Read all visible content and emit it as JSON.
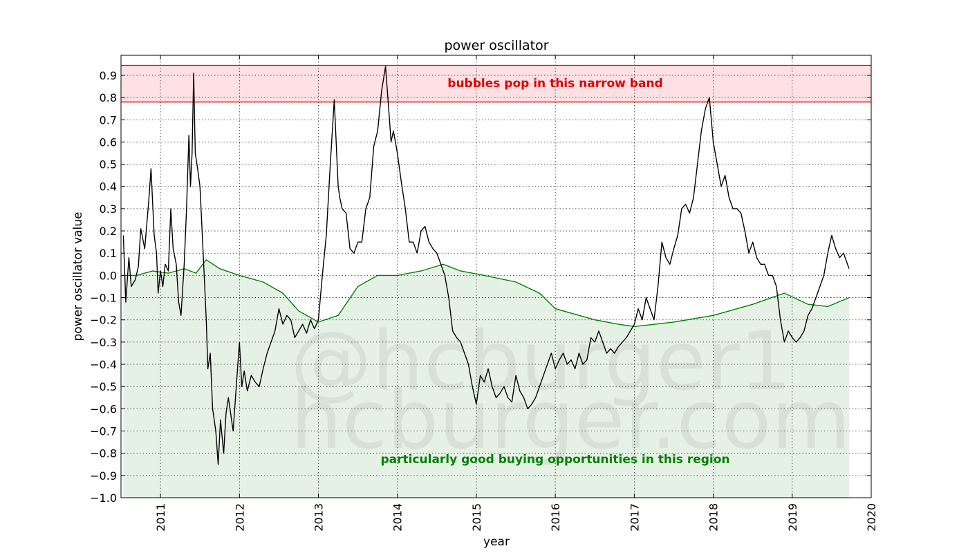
{
  "chart_data": {
    "type": "line",
    "title": "power oscillator",
    "xlabel": "year",
    "ylabel": "power oscillator value",
    "xlim": [
      2010.5,
      2020
    ],
    "ylim": [
      -1.0,
      0.99
    ],
    "x_ticks": [
      2011,
      2012,
      2013,
      2014,
      2015,
      2016,
      2017,
      2018,
      2019,
      2020
    ],
    "x_tick_labels": [
      "2011",
      "2012",
      "2013",
      "2014",
      "2015",
      "2016",
      "2017",
      "2018",
      "2019",
      "2020"
    ],
    "y_ticks": [
      -1.0,
      -0.9,
      -0.8,
      -0.7,
      -0.6,
      -0.5,
      -0.4,
      -0.3,
      -0.2,
      -0.1,
      0.0,
      0.1,
      0.2,
      0.3,
      0.4,
      0.5,
      0.6,
      0.7,
      0.8,
      0.9
    ],
    "y_tick_labels": [
      "−1.0",
      "−0.9",
      "−0.8",
      "−0.7",
      "−0.6",
      "−0.5",
      "−0.4",
      "−0.3",
      "−0.2",
      "−0.1",
      "0.0",
      "0.1",
      "0.2",
      "0.3",
      "0.4",
      "0.5",
      "0.6",
      "0.7",
      "0.8",
      "0.9"
    ],
    "grid": true,
    "colors": {
      "oscillator": "#000000",
      "lower_bound": "#008000",
      "buy_fill": "#e3f0e3",
      "bubble_band_fill": "#ffe0e3",
      "bubble_band_line": "#e00000"
    },
    "bubble_band": {
      "y_low": 0.78,
      "y_high": 0.945
    },
    "annotations": {
      "bubble": "bubbles pop in this narrow band",
      "buy": "particularly good buying opportunities in this region"
    },
    "watermark": [
      "@hcburger1",
      "hcburger.com"
    ],
    "series": [
      {
        "role": "oscillator",
        "x": [
          2010.53,
          2010.56,
          2010.6,
          2010.63,
          2010.68,
          2010.72,
          2010.75,
          2010.8,
          2010.85,
          2010.88,
          2010.92,
          2010.95,
          2010.97,
          2011.0,
          2011.03,
          2011.06,
          2011.1,
          2011.13,
          2011.16,
          2011.2,
          2011.23,
          2011.26,
          2011.3,
          2011.33,
          2011.36,
          2011.38,
          2011.4,
          2011.42,
          2011.44,
          2011.47,
          2011.5,
          2011.53,
          2011.56,
          2011.58,
          2011.6,
          2011.63,
          2011.66,
          2011.7,
          2011.73,
          2011.76,
          2011.8,
          2011.83,
          2011.86,
          2011.88,
          2011.92,
          2011.96,
          2012.0,
          2012.03,
          2012.06,
          2012.1,
          2012.15,
          2012.2,
          2012.25,
          2012.3,
          2012.35,
          2012.4,
          2012.45,
          2012.5,
          2012.55,
          2012.6,
          2012.65,
          2012.7,
          2012.75,
          2012.8,
          2012.85,
          2012.9,
          2012.95,
          2013.0,
          2013.05,
          2013.1,
          2013.15,
          2013.2,
          2013.25,
          2013.27,
          2013.3,
          2013.35,
          2013.4,
          2013.45,
          2013.5,
          2013.55,
          2013.6,
          2013.65,
          2013.7,
          2013.75,
          2013.8,
          2013.85,
          2013.9,
          2013.92,
          2013.95,
          2014.0,
          2014.05,
          2014.1,
          2014.15,
          2014.2,
          2014.25,
          2014.3,
          2014.35,
          2014.4,
          2014.45,
          2014.5,
          2014.55,
          2014.6,
          2014.65,
          2014.7,
          2014.75,
          2014.8,
          2014.85,
          2014.9,
          2014.95,
          2015.0,
          2015.05,
          2015.1,
          2015.15,
          2015.2,
          2015.25,
          2015.3,
          2015.35,
          2015.4,
          2015.45,
          2015.5,
          2015.55,
          2015.6,
          2015.65,
          2015.7,
          2015.75,
          2015.8,
          2015.85,
          2015.9,
          2015.95,
          2016.0,
          2016.05,
          2016.1,
          2016.15,
          2016.2,
          2016.25,
          2016.3,
          2016.35,
          2016.4,
          2016.45,
          2016.5,
          2016.55,
          2016.6,
          2016.65,
          2016.7,
          2016.75,
          2016.8,
          2016.85,
          2016.9,
          2016.95,
          2017.0,
          2017.05,
          2017.1,
          2017.15,
          2017.2,
          2017.25,
          2017.3,
          2017.35,
          2017.4,
          2017.45,
          2017.5,
          2017.55,
          2017.6,
          2017.65,
          2017.7,
          2017.75,
          2017.8,
          2017.85,
          2017.9,
          2017.95,
          2017.97,
          2018.0,
          2018.05,
          2018.1,
          2018.15,
          2018.2,
          2018.25,
          2018.3,
          2018.35,
          2018.4,
          2018.45,
          2018.5,
          2018.55,
          2018.6,
          2018.65,
          2018.7,
          2018.75,
          2018.8,
          2018.85,
          2018.9,
          2018.95,
          2019.0,
          2019.05,
          2019.1,
          2019.15,
          2019.2,
          2019.25,
          2019.3,
          2019.35,
          2019.4,
          2019.45,
          2019.5,
          2019.55,
          2019.6,
          2019.65,
          2019.7,
          2019.72
        ],
        "y": [
          0.18,
          -0.12,
          0.08,
          -0.05,
          -0.02,
          0.04,
          0.21,
          0.12,
          0.33,
          0.48,
          0.18,
          0.1,
          -0.08,
          0.02,
          -0.05,
          0.05,
          0.02,
          0.3,
          0.12,
          0.05,
          -0.12,
          -0.18,
          0.05,
          0.3,
          0.63,
          0.4,
          0.55,
          0.91,
          0.55,
          0.48,
          0.4,
          0.18,
          -0.05,
          -0.2,
          -0.42,
          -0.35,
          -0.6,
          -0.7,
          -0.85,
          -0.65,
          -0.8,
          -0.62,
          -0.55,
          -0.6,
          -0.7,
          -0.5,
          -0.3,
          -0.5,
          -0.43,
          -0.52,
          -0.45,
          -0.48,
          -0.5,
          -0.42,
          -0.35,
          -0.3,
          -0.25,
          -0.15,
          -0.22,
          -0.18,
          -0.2,
          -0.28,
          -0.25,
          -0.22,
          -0.26,
          -0.2,
          -0.24,
          -0.2,
          0.0,
          0.18,
          0.5,
          0.79,
          0.4,
          0.35,
          0.3,
          0.28,
          0.12,
          0.1,
          0.15,
          0.15,
          0.3,
          0.35,
          0.58,
          0.65,
          0.83,
          0.94,
          0.7,
          0.6,
          0.65,
          0.55,
          0.42,
          0.3,
          0.15,
          0.15,
          0.1,
          0.2,
          0.22,
          0.15,
          0.12,
          0.1,
          0.05,
          0.0,
          -0.1,
          -0.25,
          -0.28,
          -0.3,
          -0.35,
          -0.4,
          -0.5,
          -0.58,
          -0.45,
          -0.48,
          -0.42,
          -0.5,
          -0.55,
          -0.53,
          -0.5,
          -0.55,
          -0.57,
          -0.45,
          -0.52,
          -0.55,
          -0.6,
          -0.58,
          -0.55,
          -0.5,
          -0.45,
          -0.4,
          -0.35,
          -0.42,
          -0.38,
          -0.35,
          -0.4,
          -0.38,
          -0.42,
          -0.35,
          -0.4,
          -0.38,
          -0.28,
          -0.3,
          -0.25,
          -0.3,
          -0.35,
          -0.33,
          -0.35,
          -0.32,
          -0.3,
          -0.28,
          -0.25,
          -0.22,
          -0.15,
          -0.2,
          -0.1,
          -0.15,
          -0.2,
          -0.05,
          0.15,
          0.08,
          0.05,
          0.12,
          0.18,
          0.3,
          0.32,
          0.28,
          0.35,
          0.5,
          0.65,
          0.75,
          0.8,
          0.72,
          0.6,
          0.5,
          0.4,
          0.45,
          0.35,
          0.3,
          0.3,
          0.28,
          0.2,
          0.1,
          0.15,
          0.08,
          0.05,
          0.05,
          0.0,
          0.0,
          -0.05,
          -0.2,
          -0.3,
          -0.25,
          -0.28,
          -0.3,
          -0.28,
          -0.25,
          -0.18,
          -0.15,
          -0.1,
          -0.05,
          0.0,
          0.1,
          0.18,
          0.12,
          0.08,
          0.1,
          0.05,
          0.03
        ]
      },
      {
        "role": "lower_bound",
        "x": [
          2010.53,
          2010.7,
          2010.9,
          2011.1,
          2011.3,
          2011.45,
          2011.58,
          2011.75,
          2012.0,
          2012.3,
          2012.55,
          2012.75,
          2013.0,
          2013.25,
          2013.5,
          2013.75,
          2014.0,
          2014.3,
          2014.58,
          2014.8,
          2015.1,
          2015.5,
          2015.8,
          2016.0,
          2016.5,
          2016.8,
          2017.0,
          2017.5,
          2018.0,
          2018.5,
          2018.9,
          2019.2,
          2019.45,
          2019.72
        ],
        "y": [
          0.0,
          0.0,
          0.02,
          0.01,
          0.03,
          0.01,
          0.07,
          0.03,
          0.0,
          -0.03,
          -0.08,
          -0.16,
          -0.21,
          -0.18,
          -0.05,
          0.0,
          0.0,
          0.02,
          0.05,
          0.02,
          0.0,
          -0.03,
          -0.08,
          -0.15,
          -0.2,
          -0.22,
          -0.23,
          -0.21,
          -0.18,
          -0.13,
          -0.08,
          -0.13,
          -0.14,
          -0.1
        ]
      }
    ]
  }
}
